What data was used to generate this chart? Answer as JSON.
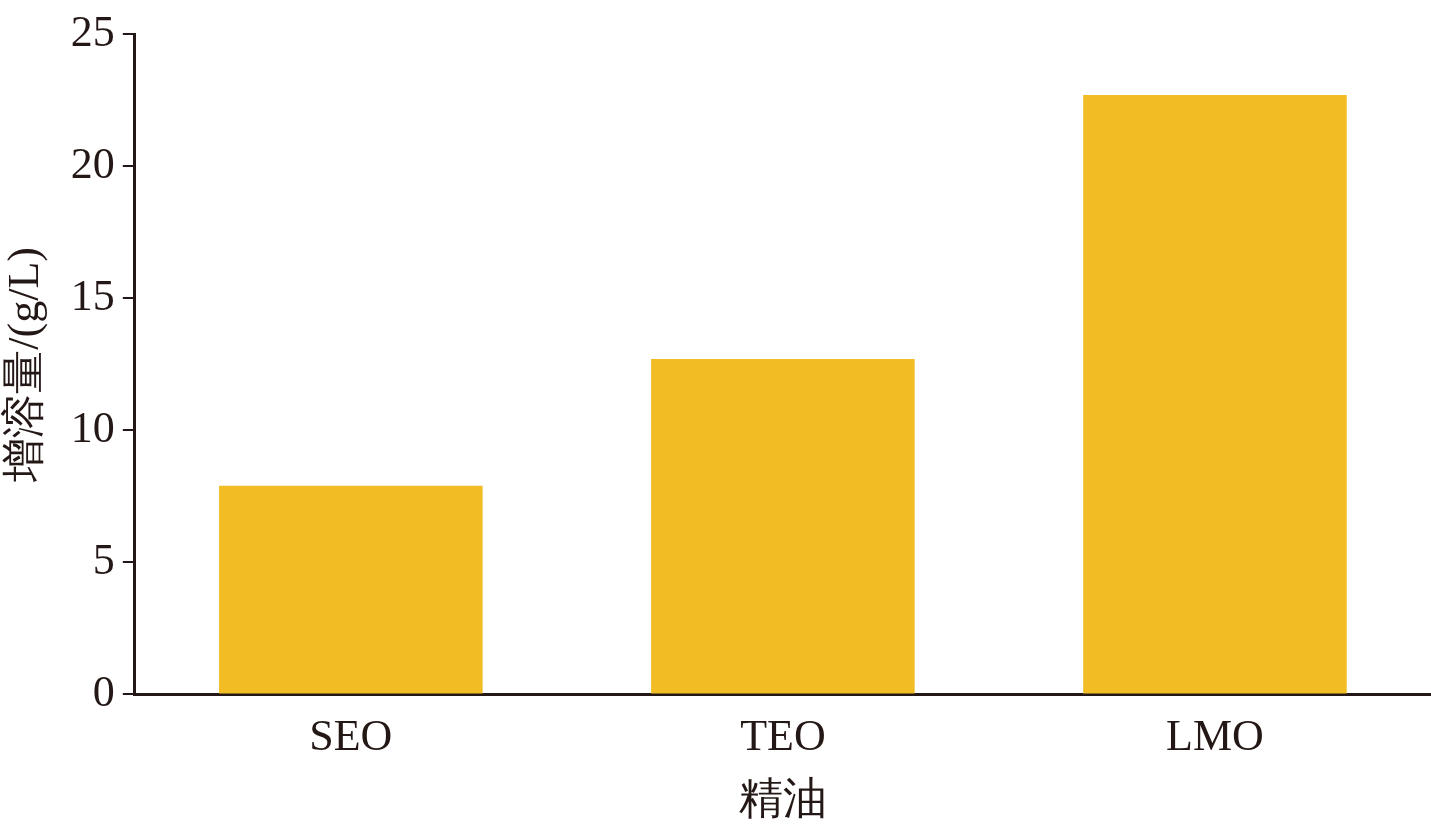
{
  "chart_data": {
    "type": "bar",
    "xlabel": "精油",
    "ylabel": "增溶量/(g/L)",
    "categories": [
      "SEO",
      "TEO",
      "LMO"
    ],
    "values": [
      7.9,
      12.7,
      22.7
    ],
    "color": "#f2bc24",
    "ylim": [
      0,
      25
    ],
    "yticks": [
      0,
      5,
      10,
      15,
      20,
      25
    ],
    "grid": false,
    "legend": false
  }
}
